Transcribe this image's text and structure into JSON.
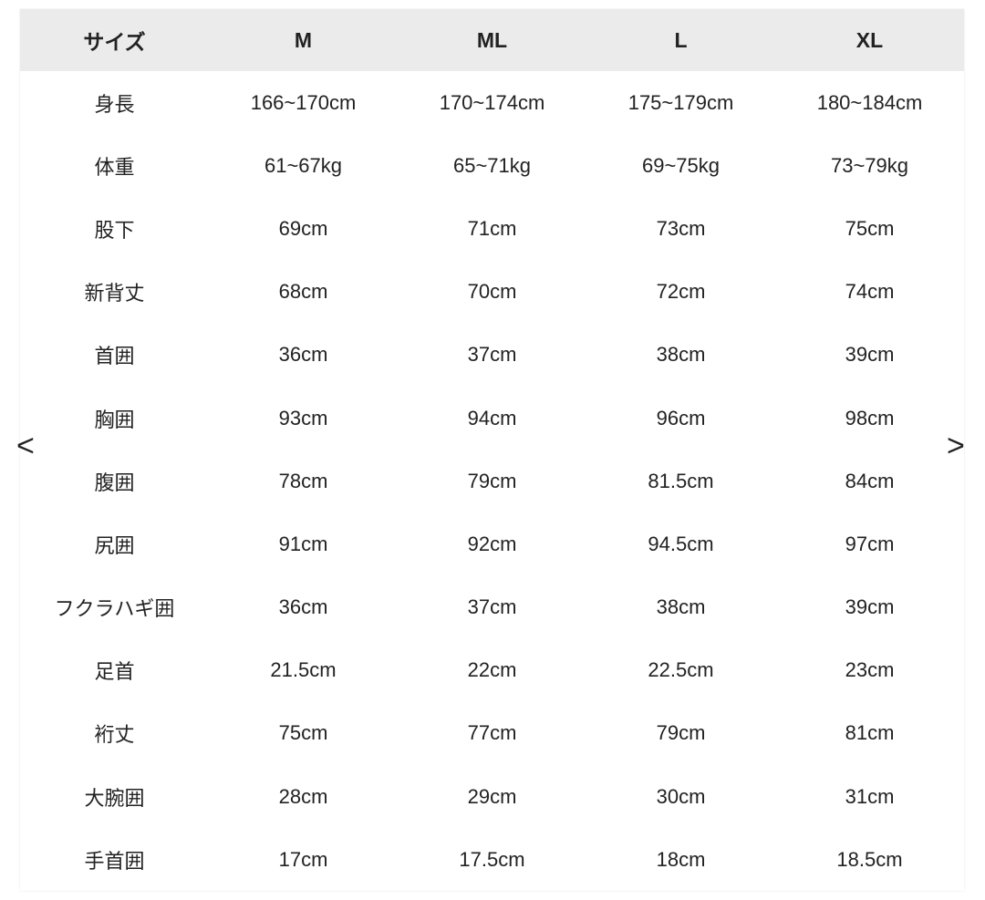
{
  "table": {
    "header": [
      "サイズ",
      "M",
      "ML",
      "L",
      "XL"
    ],
    "rows": [
      [
        "身長",
        "166~170cm",
        "170~174cm",
        "175~179cm",
        "180~184cm"
      ],
      [
        "体重",
        "61~67kg",
        "65~71kg",
        "69~75kg",
        "73~79kg"
      ],
      [
        "股下",
        "69cm",
        "71cm",
        "73cm",
        "75cm"
      ],
      [
        "新背丈",
        "68cm",
        "70cm",
        "72cm",
        "74cm"
      ],
      [
        "首囲",
        "36cm",
        "37cm",
        "38cm",
        "39cm"
      ],
      [
        "胸囲",
        "93cm",
        "94cm",
        "96cm",
        "98cm"
      ],
      [
        "腹囲",
        "78cm",
        "79cm",
        "81.5cm",
        "84cm"
      ],
      [
        "尻囲",
        "91cm",
        "92cm",
        "94.5cm",
        "97cm"
      ],
      [
        "フクラハギ囲",
        "36cm",
        "37cm",
        "38cm",
        "39cm"
      ],
      [
        "足首",
        "21.5cm",
        "22cm",
        "22.5cm",
        "23cm"
      ],
      [
        "裄丈",
        "75cm",
        "77cm",
        "79cm",
        "81cm"
      ],
      [
        "大腕囲",
        "28cm",
        "29cm",
        "30cm",
        "31cm"
      ],
      [
        "手首囲",
        "17cm",
        "17.5cm",
        "18cm",
        "18.5cm"
      ]
    ]
  },
  "nav": {
    "prev": "<",
    "next": ">"
  }
}
